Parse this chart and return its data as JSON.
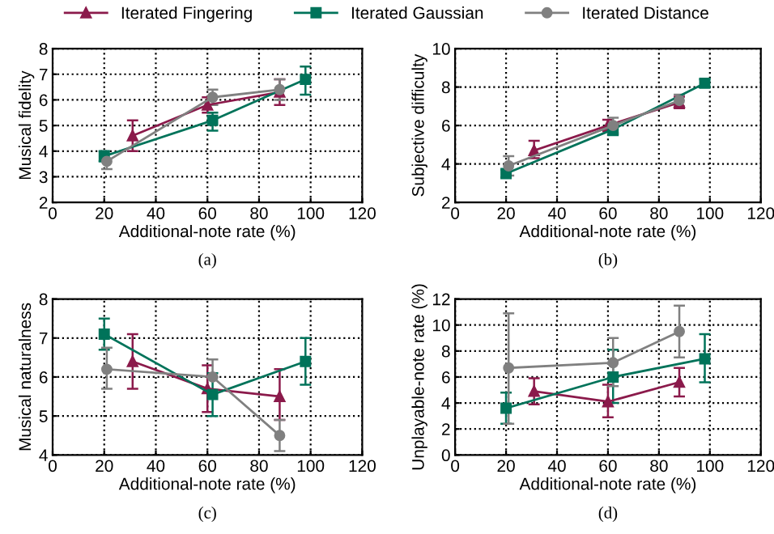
{
  "chart_data": [
    {
      "type": "line",
      "xlabel": "Additional-note rate (%)",
      "ylabel": "Musical fidelity",
      "annotations": [
        "(a)"
      ],
      "xlim": [
        0,
        120
      ],
      "xticks": [
        0,
        20,
        40,
        60,
        80,
        100,
        120
      ],
      "ylim": [
        2,
        8
      ],
      "yticks": [
        2,
        3,
        4,
        5,
        6,
        7,
        8
      ],
      "grid": true,
      "legend": "top",
      "series": [
        {
          "name": "Iterated Fingering",
          "color": "#8b1a4b",
          "marker": "triangle",
          "x": [
            31,
            60,
            88
          ],
          "values": [
            4.6,
            5.8,
            6.3
          ],
          "errors": [
            [
              4.0,
              5.2
            ],
            [
              5.5,
              6.1
            ],
            [
              5.8,
              6.8
            ]
          ]
        },
        {
          "name": "Iterated Gaussian",
          "color": "#00735a",
          "marker": "square",
          "x": [
            20,
            62,
            98
          ],
          "values": [
            3.8,
            5.2,
            6.8
          ],
          "errors": [
            [
              3.6,
              4.0
            ],
            [
              4.8,
              5.5
            ],
            [
              6.2,
              7.3
            ]
          ]
        },
        {
          "name": "Iterated Distance",
          "color": "#808080",
          "marker": "circle",
          "x": [
            21,
            62,
            88
          ],
          "values": [
            3.6,
            6.1,
            6.4
          ],
          "errors": [
            [
              3.3,
              3.9
            ],
            [
              5.8,
              6.4
            ],
            [
              6.0,
              6.8
            ]
          ]
        }
      ]
    },
    {
      "type": "line",
      "xlabel": "Additional-note rate (%)",
      "ylabel": "Subjective difficulty",
      "annotations": [
        "(b)"
      ],
      "xlim": [
        0,
        120
      ],
      "xticks": [
        0,
        20,
        40,
        60,
        80,
        100,
        120
      ],
      "ylim": [
        2,
        10
      ],
      "yticks": [
        2,
        4,
        6,
        8,
        10
      ],
      "grid": true,
      "series": [
        {
          "color": "#8b1a4b",
          "marker": "triangle",
          "x": [
            31,
            60,
            88
          ],
          "values": [
            4.7,
            6.0,
            7.2
          ],
          "errors": [
            [
              4.3,
              5.2
            ],
            [
              5.7,
              6.3
            ],
            [
              6.9,
              7.5
            ]
          ]
        },
        {
          "color": "#00735a",
          "marker": "square",
          "x": [
            20,
            62,
            98
          ],
          "values": [
            3.5,
            5.8,
            8.2
          ],
          "errors": [
            [
              3.3,
              3.7
            ],
            [
              5.5,
              6.1
            ],
            [
              8.0,
              8.4
            ]
          ]
        },
        {
          "color": "#808080",
          "marker": "circle",
          "x": [
            21,
            62,
            88
          ],
          "values": [
            3.9,
            6.0,
            7.3
          ],
          "errors": [
            [
              3.4,
              4.4
            ],
            [
              5.6,
              6.4
            ],
            [
              7.0,
              7.6
            ]
          ]
        }
      ]
    },
    {
      "type": "line",
      "xlabel": "Additional-note rate (%)",
      "ylabel": "Musical naturalness",
      "annotations": [
        "(c)"
      ],
      "xlim": [
        0,
        120
      ],
      "xticks": [
        0,
        20,
        40,
        60,
        80,
        100,
        120
      ],
      "ylim": [
        4,
        8
      ],
      "yticks": [
        4,
        5,
        6,
        7,
        8
      ],
      "grid": true,
      "series": [
        {
          "color": "#8b1a4b",
          "marker": "triangle",
          "x": [
            31,
            60,
            88
          ],
          "values": [
            6.4,
            5.7,
            5.5
          ],
          "errors": [
            [
              5.7,
              7.1
            ],
            [
              5.1,
              6.3
            ],
            [
              4.9,
              6.2
            ]
          ]
        },
        {
          "color": "#00735a",
          "marker": "square",
          "x": [
            20,
            62,
            98
          ],
          "values": [
            7.1,
            5.55,
            6.4
          ],
          "errors": [
            [
              6.7,
              7.5
            ],
            [
              5.0,
              6.1
            ],
            [
              5.8,
              7.0
            ]
          ]
        },
        {
          "color": "#808080",
          "marker": "circle",
          "x": [
            21,
            62,
            88
          ],
          "values": [
            6.2,
            6.0,
            4.5
          ],
          "errors": [
            [
              5.7,
              6.75
            ],
            [
              6.0,
              6.45
            ],
            [
              4.1,
              4.9
            ]
          ]
        }
      ]
    },
    {
      "type": "line",
      "xlabel": "Additional-note rate (%)",
      "ylabel": "Unplayable-note rate (%)",
      "annotations": [
        "(d)"
      ],
      "xlim": [
        0,
        120
      ],
      "xticks": [
        0,
        20,
        40,
        60,
        80,
        100,
        120
      ],
      "ylim": [
        0,
        12
      ],
      "yticks": [
        0,
        2,
        4,
        6,
        8,
        10,
        12
      ],
      "grid": true,
      "series": [
        {
          "color": "#8b1a4b",
          "marker": "triangle",
          "x": [
            31,
            60,
            88
          ],
          "values": [
            4.9,
            4.1,
            5.6
          ],
          "errors": [
            [
              3.9,
              5.9
            ],
            [
              2.9,
              5.4
            ],
            [
              4.5,
              6.7
            ]
          ]
        },
        {
          "color": "#00735a",
          "marker": "square",
          "x": [
            20,
            62,
            98
          ],
          "values": [
            3.6,
            6.0,
            7.4
          ],
          "errors": [
            [
              2.4,
              4.8
            ],
            [
              4.0,
              8.1
            ],
            [
              5.6,
              9.3
            ]
          ]
        },
        {
          "color": "#808080",
          "marker": "circle",
          "x": [
            21,
            62,
            88
          ],
          "values": [
            6.7,
            7.1,
            9.5
          ],
          "errors": [
            [
              2.4,
              10.9
            ],
            [
              5.3,
              9.0
            ],
            [
              7.5,
              11.5
            ]
          ]
        }
      ]
    }
  ]
}
